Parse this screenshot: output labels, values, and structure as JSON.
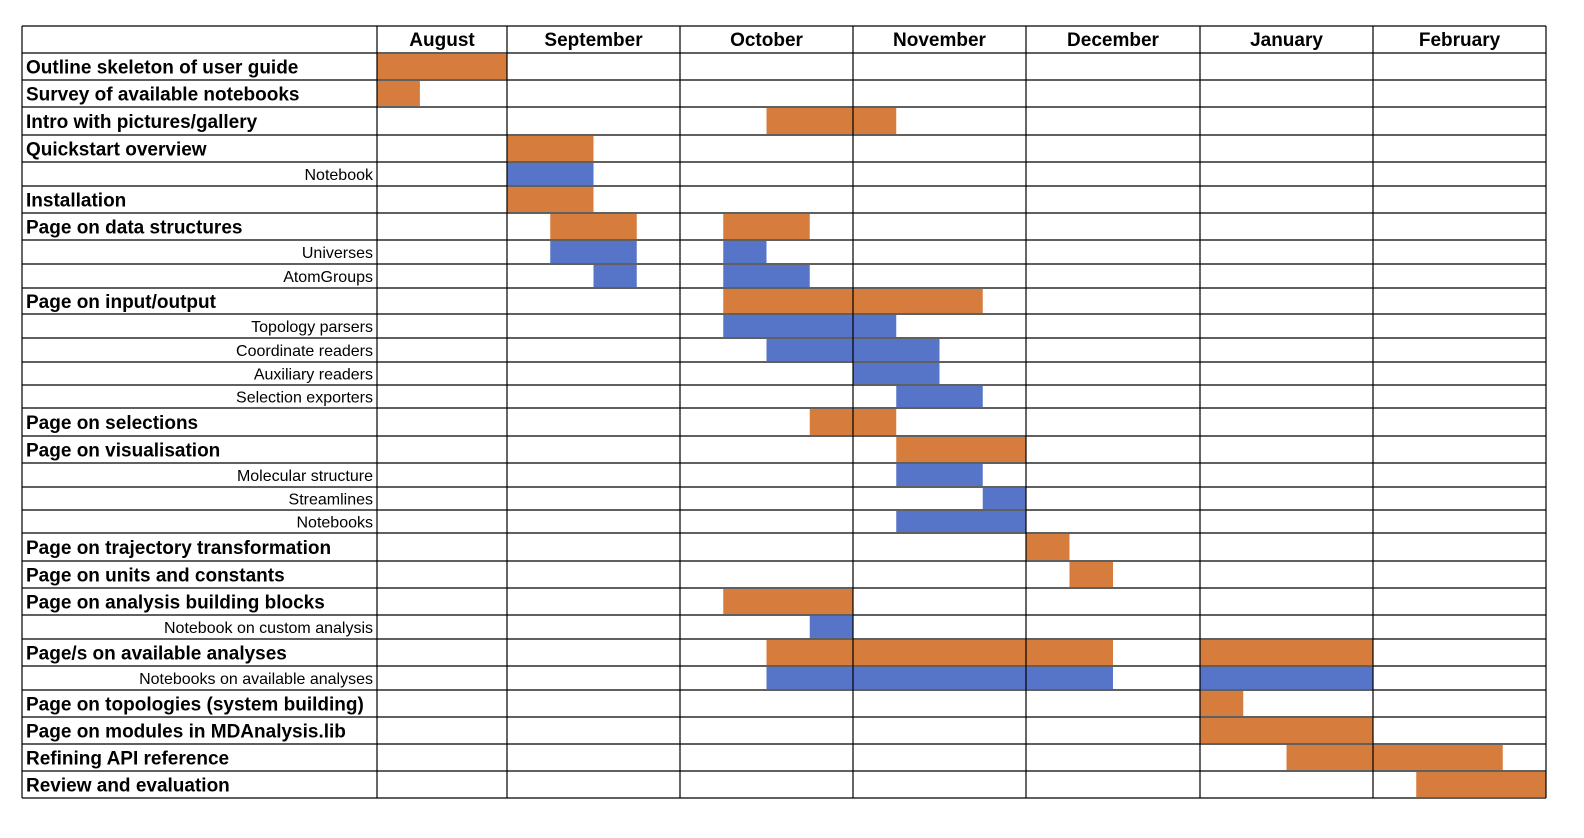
{
  "chart_data": {
    "type": "gantt",
    "title": "",
    "months": [
      "August",
      "September",
      "October",
      "November",
      "December",
      "January",
      "February"
    ],
    "colors": {
      "task": "#D67C3C",
      "subtask": "#5675C8",
      "grid": "#000000"
    },
    "rows": [
      {
        "label": "Outline skeleton of user guide",
        "level": "task",
        "bars": [
          [
            0,
            1.0
          ]
        ]
      },
      {
        "label": "Survey of available notebooks",
        "level": "task",
        "bars": [
          [
            0,
            0.33
          ]
        ]
      },
      {
        "label": "Intro with pictures/gallery",
        "level": "task",
        "bars": [
          [
            2.5,
            3.25
          ]
        ]
      },
      {
        "label": "Quickstart overview",
        "level": "task",
        "bars": [
          [
            1.0,
            1.5
          ]
        ]
      },
      {
        "label": "Notebook",
        "level": "subtask",
        "bars": [
          [
            1.0,
            1.5
          ]
        ]
      },
      {
        "label": "Installation",
        "level": "task",
        "bars": [
          [
            1.0,
            1.5
          ]
        ]
      },
      {
        "label": "Page on data structures",
        "level": "task",
        "bars": [
          [
            1.25,
            1.75
          ],
          [
            2.25,
            2.75
          ]
        ]
      },
      {
        "label": "Universes",
        "level": "subtask",
        "bars": [
          [
            1.25,
            1.75
          ],
          [
            2.25,
            2.5
          ]
        ]
      },
      {
        "label": "AtomGroups",
        "level": "subtask",
        "bars": [
          [
            1.5,
            1.75
          ],
          [
            2.25,
            2.75
          ]
        ]
      },
      {
        "label": "Page on input/output",
        "level": "task",
        "bars": [
          [
            2.25,
            3.75
          ]
        ]
      },
      {
        "label": "Topology parsers",
        "level": "subtask",
        "bars": [
          [
            2.25,
            3.25
          ]
        ]
      },
      {
        "label": "Coordinate readers",
        "level": "subtask",
        "bars": [
          [
            2.5,
            3.5
          ]
        ]
      },
      {
        "label": "Auxiliary readers",
        "level": "subtask",
        "bars": [
          [
            3.0,
            3.5
          ]
        ]
      },
      {
        "label": "Selection exporters",
        "level": "subtask",
        "bars": [
          [
            3.25,
            3.75
          ]
        ]
      },
      {
        "label": "Page on selections",
        "level": "task",
        "bars": [
          [
            2.75,
            3.25
          ]
        ]
      },
      {
        "label": "Page on visualisation",
        "level": "task",
        "bars": [
          [
            3.25,
            4.0
          ]
        ]
      },
      {
        "label": "Molecular structure",
        "level": "subtask",
        "bars": [
          [
            3.25,
            3.75
          ]
        ]
      },
      {
        "label": "Streamlines",
        "level": "subtask",
        "bars": [
          [
            3.75,
            4.0
          ]
        ]
      },
      {
        "label": "Notebooks",
        "level": "subtask",
        "bars": [
          [
            3.25,
            4.0
          ]
        ]
      },
      {
        "label": "Page on trajectory transformation",
        "level": "task",
        "bars": [
          [
            4.0,
            4.25
          ]
        ]
      },
      {
        "label": "Page on units and constants",
        "level": "task",
        "bars": [
          [
            4.25,
            4.5
          ]
        ]
      },
      {
        "label": "Page on analysis building blocks",
        "level": "task",
        "bars": [
          [
            2.25,
            3.0
          ]
        ]
      },
      {
        "label": "Notebook on custom analysis",
        "level": "subtask",
        "bars": [
          [
            2.75,
            3.0
          ]
        ]
      },
      {
        "label": "Page/s on available analyses",
        "level": "task",
        "bars": [
          [
            2.5,
            4.5
          ],
          [
            5.0,
            6.0
          ]
        ]
      },
      {
        "label": "Notebooks on available analyses",
        "level": "subtask",
        "bars": [
          [
            2.5,
            4.5
          ],
          [
            5.0,
            6.0
          ]
        ]
      },
      {
        "label": "Page on topologies (system building)",
        "level": "task",
        "bars": [
          [
            5.0,
            5.25
          ]
        ]
      },
      {
        "label": "Page on modules in MDAnalysis.lib",
        "level": "task",
        "bars": [
          [
            5.0,
            6.0
          ]
        ]
      },
      {
        "label": "Refining API reference",
        "level": "task",
        "bars": [
          [
            5.5,
            6.75
          ]
        ]
      },
      {
        "label": "Review and evaluation",
        "level": "task",
        "bars": [
          [
            6.25,
            7.0
          ]
        ]
      }
    ]
  }
}
